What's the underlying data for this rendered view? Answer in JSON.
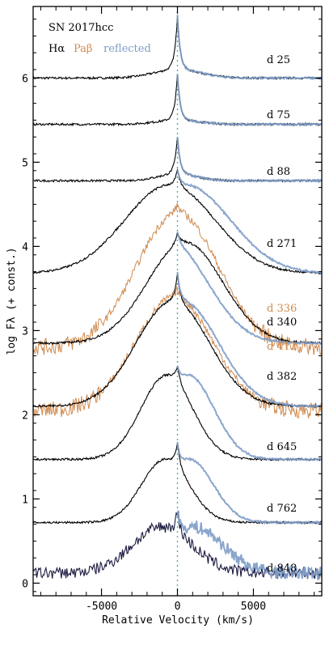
{
  "chart_data": {
    "type": "line",
    "title": "SN 2017hcc",
    "xlabel": "Relative Velocity (km/s)",
    "ylabel": "log Fλ (+ const.)",
    "xlim": [
      -9500,
      9500
    ],
    "ylim": [
      -0.15,
      6.85
    ],
    "xticks": [
      -5000,
      0,
      5000
    ],
    "xtick_labels": [
      "-5000",
      "0",
      "5000"
    ],
    "yticks": [
      0,
      1,
      2,
      3,
      4,
      5,
      6
    ],
    "ytick_labels": [
      "0",
      "1",
      "2",
      "3",
      "4",
      "5",
      "6"
    ],
    "legend": [
      {
        "label": "Hα",
        "color": "#000000"
      },
      {
        "label": "Paβ",
        "color": "#d08a4e"
      },
      {
        "label": "reflected",
        "color": "#7e9cc8"
      }
    ],
    "series_color": {
      "halpha": "#000000",
      "pabeta": "#d08a4e",
      "reflected": "#7e9cc8",
      "late_halpha": "#1a1a40",
      "zero_line": "#5aa6a6"
    },
    "epochs": [
      {
        "label": "d 25",
        "offset": 6.0,
        "peak": 0.65,
        "broad": 0.1,
        "broad_w": 2200,
        "blue_shift": 0,
        "color": "halpha"
      },
      {
        "label": "d 75",
        "offset": 5.45,
        "peak": 0.55,
        "broad": 0.05,
        "broad_w": 2000,
        "blue_shift": 0,
        "color": "halpha"
      },
      {
        "label": "d 88",
        "offset": 4.78,
        "peak": 0.45,
        "broad": 0.08,
        "broad_w": 1800,
        "blue_shift": 0,
        "color": "halpha"
      },
      {
        "label": "d 271",
        "offset": 3.68,
        "peak": 0.2,
        "broad": 1.05,
        "broad_w": 4200,
        "blue_shift": -500,
        "color": "halpha"
      },
      {
        "label": "d 336",
        "offset": 2.8,
        "peak": 0.1,
        "broad": 1.6,
        "broad_w": 3800,
        "blue_shift": 0,
        "color": "pabeta"
      },
      {
        "label": "d 340",
        "offset": 2.85,
        "peak": 0.15,
        "broad": 1.2,
        "broad_w": 3500,
        "blue_shift": 500,
        "color": "halpha"
      },
      {
        "label": "d 412",
        "offset": 2.05,
        "peak": 0.1,
        "broad": 1.35,
        "broad_w": 3600,
        "blue_shift": -200,
        "color": "pabeta"
      },
      {
        "label": "d 382",
        "offset": 2.1,
        "peak": 0.35,
        "broad": 1.25,
        "broad_w": 3400,
        "blue_shift": -300,
        "color": "halpha"
      },
      {
        "label": "d 645",
        "offset": 1.47,
        "peak": 0.2,
        "broad": 1.0,
        "broad_w": 2400,
        "blue_shift": -700,
        "color": "halpha"
      },
      {
        "label": "d 762",
        "offset": 0.72,
        "peak": 0.3,
        "broad": 0.75,
        "broad_w": 2200,
        "blue_shift": -800,
        "color": "halpha"
      },
      {
        "label": "d 848",
        "offset": 0.12,
        "peak": 0.25,
        "broad": 0.55,
        "broad_w": 2800,
        "blue_shift": -1000,
        "color": "late_halpha"
      }
    ]
  }
}
